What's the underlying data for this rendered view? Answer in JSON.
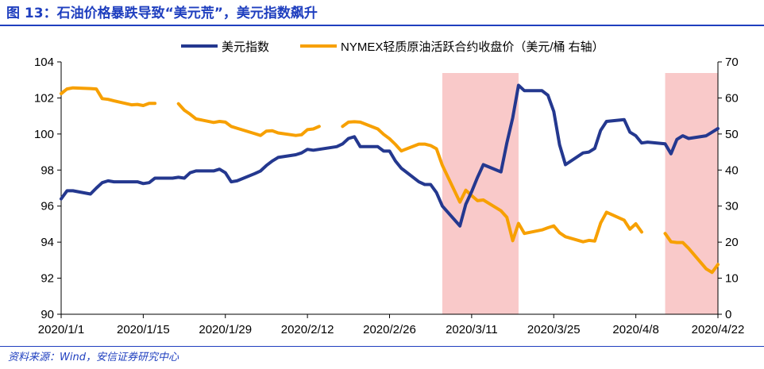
{
  "figure_title": "图 13：石油价格暴跌导致“美元荒”，美元指数飙升",
  "source_note": "资料来源：Wind，安信证券研究中心",
  "colors": {
    "usd_line": "#24388f",
    "oil_line": "#f7a000",
    "shade": "#f9c9c9",
    "title_blue": "#1f3fbf",
    "axis": "#000000"
  },
  "chart_data": {
    "type": "line",
    "legend_position": "top-center",
    "grid": false,
    "x_ticks": [
      "2020/1/1",
      "2020/1/15",
      "2020/1/29",
      "2020/2/12",
      "2020/2/26",
      "2020/3/11",
      "2020/3/25",
      "2020/4/8",
      "2020/4/22"
    ],
    "xlim": [
      "2020-01-01",
      "2020-04-22"
    ],
    "left_axis": {
      "ylim": [
        90,
        104
      ],
      "ticks": [
        90,
        92,
        94,
        96,
        98,
        100,
        102,
        104
      ]
    },
    "right_axis": {
      "ylim": [
        0,
        70
      ],
      "ticks": [
        0,
        10,
        20,
        30,
        40,
        50,
        60,
        70
      ]
    },
    "shaded_ranges": [
      {
        "start": "2020-03-06",
        "end": "2020-03-19"
      },
      {
        "start": "2020-04-13",
        "end": "2020-04-22"
      }
    ],
    "series": [
      {
        "name": "美元指数",
        "axis": "left",
        "points": [
          [
            "2020-01-01",
            96.4
          ],
          [
            "2020-01-02",
            96.85
          ],
          [
            "2020-01-03",
            96.85
          ],
          [
            "2020-01-06",
            96.67
          ],
          [
            "2020-01-07",
            97.0
          ],
          [
            "2020-01-08",
            97.3
          ],
          [
            "2020-01-09",
            97.4
          ],
          [
            "2020-01-10",
            97.35
          ],
          [
            "2020-01-13",
            97.35
          ],
          [
            "2020-01-14",
            97.35
          ],
          [
            "2020-01-15",
            97.25
          ],
          [
            "2020-01-16",
            97.3
          ],
          [
            "2020-01-17",
            97.55
          ],
          [
            "2020-01-20",
            97.55
          ],
          [
            "2020-01-21",
            97.6
          ],
          [
            "2020-01-22",
            97.55
          ],
          [
            "2020-01-23",
            97.85
          ],
          [
            "2020-01-24",
            97.95
          ],
          [
            "2020-01-27",
            97.95
          ],
          [
            "2020-01-28",
            98.05
          ],
          [
            "2020-01-29",
            97.85
          ],
          [
            "2020-01-30",
            97.35
          ],
          [
            "2020-01-31",
            97.4
          ],
          [
            "2020-02-03",
            97.8
          ],
          [
            "2020-02-04",
            97.95
          ],
          [
            "2020-02-05",
            98.25
          ],
          [
            "2020-02-06",
            98.5
          ],
          [
            "2020-02-07",
            98.7
          ],
          [
            "2020-02-10",
            98.85
          ],
          [
            "2020-02-11",
            98.95
          ],
          [
            "2020-02-12",
            99.15
          ],
          [
            "2020-02-13",
            99.1
          ],
          [
            "2020-02-14",
            99.15
          ],
          [
            "2020-02-17",
            99.3
          ],
          [
            "2020-02-18",
            99.45
          ],
          [
            "2020-02-19",
            99.75
          ],
          [
            "2020-02-20",
            99.85
          ],
          [
            "2020-02-21",
            99.3
          ],
          [
            "2020-02-24",
            99.3
          ],
          [
            "2020-02-25",
            99.05
          ],
          [
            "2020-02-26",
            99.05
          ],
          [
            "2020-02-27",
            98.5
          ],
          [
            "2020-02-28",
            98.1
          ],
          [
            "2020-03-02",
            97.35
          ],
          [
            "2020-03-03",
            97.2
          ],
          [
            "2020-03-04",
            97.2
          ],
          [
            "2020-03-05",
            96.75
          ],
          [
            "2020-03-06",
            96.0
          ],
          [
            "2020-03-09",
            94.9
          ],
          [
            "2020-03-10",
            96.1
          ],
          [
            "2020-03-11",
            96.8
          ],
          [
            "2020-03-12",
            97.6
          ],
          [
            "2020-03-13",
            98.3
          ],
          [
            "2020-03-16",
            97.9
          ],
          [
            "2020-03-17",
            99.5
          ],
          [
            "2020-03-18",
            100.9
          ],
          [
            "2020-03-19",
            102.7
          ],
          [
            "2020-03-20",
            102.4
          ],
          [
            "2020-03-23",
            102.4
          ],
          [
            "2020-03-24",
            102.15
          ],
          [
            "2020-03-25",
            101.25
          ],
          [
            "2020-03-26",
            99.4
          ],
          [
            "2020-03-27",
            98.3
          ],
          [
            "2020-03-30",
            98.95
          ],
          [
            "2020-03-31",
            99.0
          ],
          [
            "2020-04-01",
            99.2
          ],
          [
            "2020-04-02",
            100.2
          ],
          [
            "2020-04-03",
            100.7
          ],
          [
            "2020-04-06",
            100.8
          ],
          [
            "2020-04-07",
            100.1
          ],
          [
            "2020-04-08",
            99.9
          ],
          [
            "2020-04-09",
            99.5
          ],
          [
            "2020-04-10",
            99.55
          ],
          [
            "2020-04-13",
            99.45
          ],
          [
            "2020-04-14",
            98.9
          ],
          [
            "2020-04-15",
            99.7
          ],
          [
            "2020-04-16",
            99.9
          ],
          [
            "2020-04-17",
            99.75
          ],
          [
            "2020-04-20",
            99.9
          ],
          [
            "2020-04-21",
            100.1
          ],
          [
            "2020-04-22",
            100.3
          ]
        ]
      },
      {
        "name": "NYMEX轻质原油活跃合约收盘价（美元/桶 右轴）",
        "axis": "right",
        "segments": [
          [
            [
              "2020-01-01",
              61.2
            ],
            [
              "2020-01-02",
              62.5
            ],
            [
              "2020-01-03",
              62.8
            ],
            [
              "2020-01-06",
              62.6
            ],
            [
              "2020-01-07",
              62.5
            ],
            [
              "2020-01-08",
              59.8
            ],
            [
              "2020-01-09",
              59.6
            ],
            [
              "2020-01-10",
              59.2
            ],
            [
              "2020-01-13",
              58.1
            ],
            [
              "2020-01-14",
              58.2
            ],
            [
              "2020-01-15",
              57.9
            ],
            [
              "2020-01-16",
              58.5
            ],
            [
              "2020-01-17",
              58.5
            ]
          ],
          [
            [
              "2020-01-21",
              58.4
            ],
            [
              "2020-01-22",
              56.6
            ],
            [
              "2020-01-23",
              55.5
            ],
            [
              "2020-01-24",
              54.2
            ],
            [
              "2020-01-27",
              53.2
            ],
            [
              "2020-01-28",
              53.5
            ],
            [
              "2020-01-29",
              53.3
            ],
            [
              "2020-01-30",
              52.1
            ],
            [
              "2020-01-31",
              51.6
            ],
            [
              "2020-02-03",
              50.1
            ],
            [
              "2020-02-04",
              49.6
            ],
            [
              "2020-02-05",
              50.8
            ],
            [
              "2020-02-06",
              50.9
            ],
            [
              "2020-02-07",
              50.3
            ],
            [
              "2020-02-10",
              49.6
            ],
            [
              "2020-02-11",
              49.8
            ],
            [
              "2020-02-12",
              51.2
            ],
            [
              "2020-02-13",
              51.4
            ],
            [
              "2020-02-14",
              52.1
            ]
          ],
          [
            [
              "2020-02-18",
              52.1
            ],
            [
              "2020-02-19",
              53.3
            ],
            [
              "2020-02-20",
              53.4
            ],
            [
              "2020-02-21",
              53.3
            ],
            [
              "2020-02-24",
              51.4
            ],
            [
              "2020-02-25",
              49.9
            ],
            [
              "2020-02-26",
              48.7
            ],
            [
              "2020-02-27",
              47.1
            ],
            [
              "2020-02-28",
              45.3
            ],
            [
              "2020-03-02",
              47.2
            ],
            [
              "2020-03-03",
              47.2
            ],
            [
              "2020-03-04",
              46.8
            ],
            [
              "2020-03-05",
              45.9
            ],
            [
              "2020-03-06",
              41.3
            ],
            [
              "2020-03-09",
              31.1
            ],
            [
              "2020-03-10",
              34.4
            ],
            [
              "2020-03-11",
              32.9
            ],
            [
              "2020-03-12",
              31.5
            ],
            [
              "2020-03-13",
              31.7
            ],
            [
              "2020-03-16",
              28.7
            ],
            [
              "2020-03-17",
              26.9
            ],
            [
              "2020-03-18",
              20.4
            ],
            [
              "2020-03-19",
              25.2
            ],
            [
              "2020-03-20",
              22.4
            ],
            [
              "2020-03-23",
              23.4
            ],
            [
              "2020-03-24",
              24.0
            ],
            [
              "2020-03-25",
              24.5
            ],
            [
              "2020-03-26",
              22.6
            ],
            [
              "2020-03-27",
              21.5
            ],
            [
              "2020-03-30",
              20.1
            ],
            [
              "2020-03-31",
              20.5
            ],
            [
              "2020-04-01",
              20.3
            ],
            [
              "2020-04-02",
              25.3
            ],
            [
              "2020-04-03",
              28.3
            ],
            [
              "2020-04-06",
              26.1
            ],
            [
              "2020-04-07",
              23.6
            ],
            [
              "2020-04-08",
              25.1
            ],
            [
              "2020-04-09",
              22.8
            ]
          ],
          [
            [
              "2020-04-13",
              22.4
            ],
            [
              "2020-04-14",
              20.1
            ],
            [
              "2020-04-15",
              19.9
            ],
            [
              "2020-04-16",
              19.9
            ],
            [
              "2020-04-17",
              18.3
            ],
            [
              "2020-04-20",
              12.6
            ],
            [
              "2020-04-21",
              11.6
            ],
            [
              "2020-04-22",
              13.8
            ]
          ]
        ]
      }
    ]
  }
}
